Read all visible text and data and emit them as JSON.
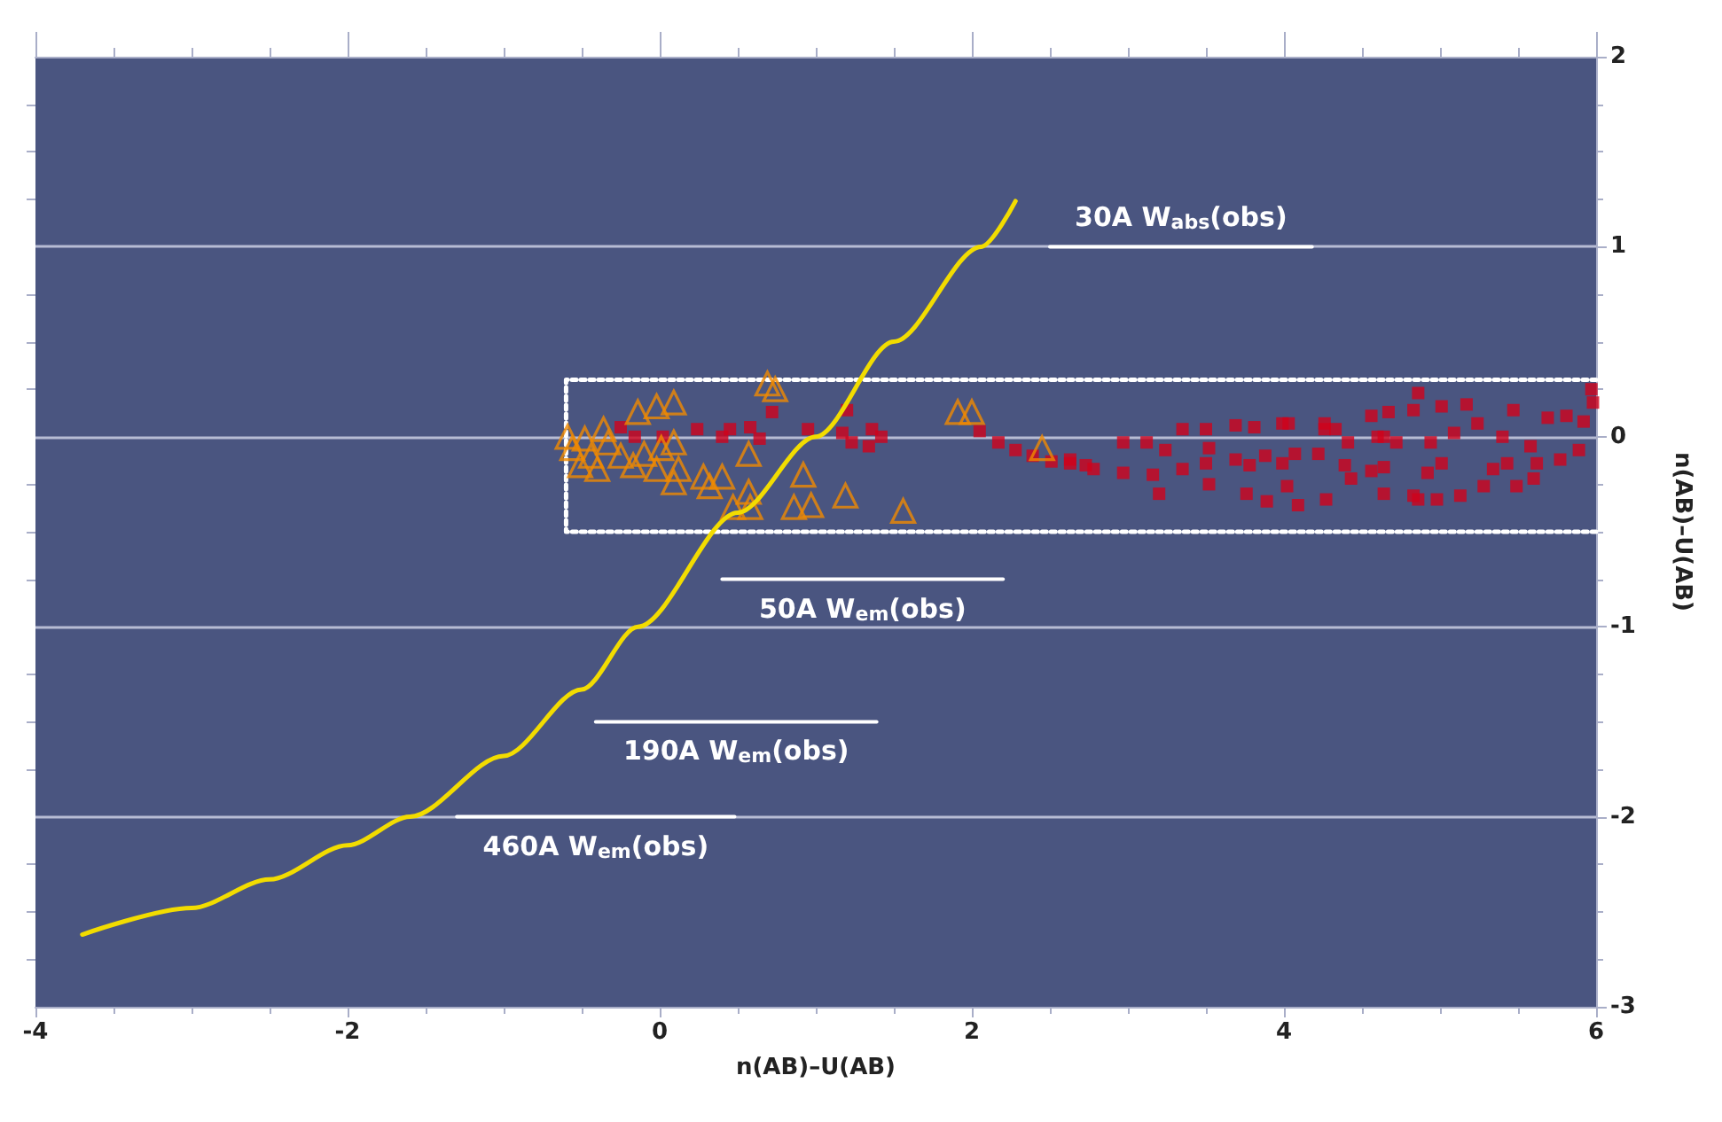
{
  "chart_data": {
    "type": "scatter",
    "xlabel": "n(AB)–U(AB)",
    "ylabel": "n(AB)–U(AB)",
    "xlim": [
      -4,
      6
    ],
    "xticks": [
      -4,
      -2,
      0,
      2,
      4,
      6
    ],
    "ylim": [
      -3,
      2
    ],
    "yticks": [
      -3,
      -2,
      -1,
      0,
      1,
      2
    ],
    "grid": "y",
    "series": [
      {
        "type": "line",
        "color": "#f2dc00",
        "line_style": "solid",
        "marker": "none",
        "x": [
          -3.7,
          -3,
          -2.5,
          -2,
          -1.6,
          -1,
          -0.5,
          -0.14,
          0.5,
          1.0,
          1.5,
          2.06,
          2.28
        ],
        "values": [
          -2.62,
          -2.48,
          -2.33,
          -2.15,
          -2.0,
          -1.68,
          -1.33,
          -1.0,
          -0.4,
          0.0,
          0.5,
          1.0,
          1.24
        ]
      },
      {
        "type": "line",
        "color": "#ffffff",
        "line_style": "dotted",
        "marker": "none",
        "x": [
          6,
          -0.6,
          -0.6,
          6
        ],
        "values": [
          0.3,
          0.3,
          -0.5,
          -0.5
        ]
      },
      {
        "type": "line",
        "name": "30A W$_{abs}$(obs)",
        "color": "#ffffff",
        "line_style": "solid",
        "marker": "none",
        "x": [
          2.5,
          4.18
        ],
        "values": [
          1.0,
          1.0
        ]
      },
      {
        "type": "line",
        "name": "50A W$_{em}$(obs)",
        "color": "#ffffff",
        "line_style": "solid",
        "marker": "none",
        "x": [
          0.4,
          2.2
        ],
        "values": [
          -0.75,
          -0.75
        ]
      },
      {
        "type": "line",
        "name": "190A W$_{em}$(obs)",
        "color": "#ffffff",
        "line_style": "solid",
        "marker": "none",
        "x": [
          -0.41,
          1.39
        ],
        "values": [
          -1.5,
          -1.5
        ]
      },
      {
        "type": "line",
        "name": "460A W$_{em}$(obs)",
        "color": "#ffffff",
        "line_style": "solid",
        "marker": "none",
        "x": [
          -1.3,
          0.48
        ],
        "values": [
          -2.0,
          -2.0
        ]
      },
      {
        "color": "#d0021b",
        "marker": "square",
        "x": [
          -0.25,
          -0.16,
          0.02,
          0.24,
          0.4,
          0.45,
          0.58,
          0.64,
          0.72,
          0.95,
          1.2,
          1.17,
          1.23,
          1.36,
          1.42,
          1.34,
          2.05,
          2.17,
          2.28,
          2.39,
          2.51,
          2.63,
          2.73,
          2.63,
          2.78,
          2.97,
          3.16,
          3.35,
          3.5,
          3.69,
          3.88,
          4.07,
          4.22,
          2.97,
          3.12,
          3.35,
          3.5,
          3.69,
          3.81,
          3.99,
          4.26,
          4.56,
          4.67,
          4.83,
          5.01,
          5.17,
          4.86,
          4.33,
          4.41,
          4.6,
          4.72,
          4.94,
          5.09,
          5.24,
          5.4,
          5.47,
          5.58,
          5.69,
          5.81,
          5.92,
          5.97,
          5.98,
          5.77,
          5.62,
          5.6,
          5.49,
          5.28,
          5.13,
          4.98,
          4.86,
          4.83,
          5.01,
          4.92,
          5.34,
          5.43,
          3.2,
          3.52,
          3.76,
          3.89,
          4.02,
          4.09,
          4.27,
          4.43,
          4.56,
          4.64,
          4.64,
          4.39,
          3.24,
          3.52,
          3.78,
          3.99,
          4.64,
          4.03,
          4.26,
          5.89
        ],
        "values": [
          0.05,
          0,
          0,
          0.04,
          0,
          0.04,
          0.05,
          -0.01,
          0.13,
          0.04,
          0.14,
          0.02,
          -0.03,
          0.04,
          0,
          -0.05,
          0.03,
          -0.03,
          -0.07,
          -0.1,
          -0.13,
          -0.12,
          -0.15,
          -0.14,
          -0.17,
          -0.19,
          -0.2,
          -0.17,
          -0.14,
          -0.12,
          -0.1,
          -0.09,
          -0.09,
          -0.03,
          -0.03,
          0.04,
          0.04,
          0.06,
          0.05,
          0.07,
          0.07,
          0.11,
          0.13,
          0.14,
          0.16,
          0.17,
          0.23,
          0.04,
          -0.03,
          0,
          -0.03,
          -0.03,
          0.02,
          0.07,
          0,
          0.14,
          -0.05,
          0.1,
          0.11,
          0.08,
          0.25,
          0.18,
          -0.12,
          -0.14,
          -0.22,
          -0.26,
          -0.26,
          -0.31,
          -0.33,
          -0.33,
          -0.31,
          -0.14,
          -0.19,
          -0.17,
          -0.14,
          -0.3,
          -0.25,
          -0.3,
          -0.34,
          -0.26,
          -0.36,
          -0.33,
          -0.22,
          -0.18,
          -0.3,
          -0.16,
          -0.15,
          -0.07,
          -0.06,
          -0.15,
          -0.14,
          0,
          0.07,
          0.04,
          -0.07
        ]
      },
      {
        "color": "#f08a00",
        "marker": "triangle",
        "x": [
          -0.48,
          -0.56,
          -0.44,
          -0.33,
          -0.4,
          -0.51,
          -0.14,
          -0.02,
          0.09,
          -0.1,
          0.01,
          0.09,
          -0.17,
          -0.02,
          0.12,
          0.09,
          0.28,
          0.4,
          0.32,
          0.69,
          0.74,
          0.57,
          0.57,
          0.47,
          0.58,
          0.92,
          0.86,
          0.97,
          1.19,
          1.56,
          1.91,
          2.0,
          2.45,
          -0.59,
          -0.36,
          -0.25
        ],
        "values": [
          -0.01,
          -0.06,
          -0.1,
          -0.03,
          -0.17,
          -0.15,
          0.13,
          0.16,
          0.18,
          -0.09,
          -0.06,
          -0.03,
          -0.15,
          -0.17,
          -0.17,
          -0.24,
          -0.21,
          -0.21,
          -0.26,
          0.28,
          0.25,
          -0.09,
          -0.29,
          -0.37,
          -0.37,
          -0.2,
          -0.37,
          -0.36,
          -0.31,
          -0.39,
          0.13,
          0.13,
          -0.06,
          0,
          0.04,
          -0.1
        ]
      }
    ]
  }
}
